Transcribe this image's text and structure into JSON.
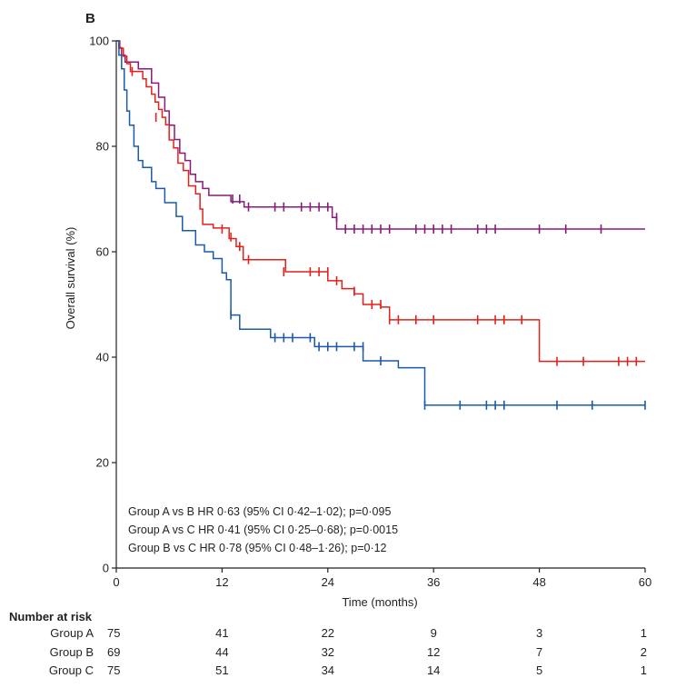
{
  "chart_data": {
    "type": "line",
    "panel_label": "B",
    "xlabel": "Time (months)",
    "ylabel": "Overall survival (%)",
    "xlim": [
      0,
      60
    ],
    "ylim": [
      0,
      100
    ],
    "x_ticks": [
      0,
      12,
      24,
      36,
      48,
      60
    ],
    "y_ticks": [
      0,
      20,
      40,
      60,
      80,
      100
    ],
    "grid": false,
    "annotations": [
      "Group A vs B HR 0·63 (95% CI 0·42–1·02); p=0·095",
      "Group A vs C HR 0·41 (95% CI 0·25–0·68); p=0·0015",
      "Group B vs C HR 0·78 (95% CI 0·48–1·26); p=0·12"
    ],
    "series": [
      {
        "name": "Group A",
        "color": "#8a1a7a",
        "steps": [
          [
            0,
            100
          ],
          [
            0.3,
            98.7
          ],
          [
            0.6,
            97.3
          ],
          [
            1.0,
            96
          ],
          [
            2.5,
            94.7
          ],
          [
            4.0,
            92
          ],
          [
            4.8,
            89.3
          ],
          [
            5.5,
            86.7
          ],
          [
            6.0,
            84
          ],
          [
            6.6,
            81.3
          ],
          [
            7.2,
            78.7
          ],
          [
            7.8,
            77.3
          ],
          [
            8.4,
            74.7
          ],
          [
            9.0,
            73.3
          ],
          [
            9.8,
            72
          ],
          [
            10.5,
            70.7
          ],
          [
            13.0,
            69.5
          ],
          [
            14.5,
            68.5
          ],
          [
            24.5,
            66.5
          ],
          [
            25.0,
            64.3
          ],
          [
            60,
            64.3
          ]
        ],
        "censor": [
          [
            13.2,
            70
          ],
          [
            14,
            70
          ],
          [
            15,
            68.5
          ],
          [
            18,
            68.5
          ],
          [
            19,
            68.5
          ],
          [
            21,
            68.5
          ],
          [
            22,
            68.5
          ],
          [
            23,
            68.5
          ],
          [
            24,
            68.5
          ],
          [
            25,
            66.5
          ],
          [
            26,
            64.3
          ],
          [
            27,
            64.3
          ],
          [
            28,
            64.3
          ],
          [
            29,
            64.3
          ],
          [
            30,
            64.3
          ],
          [
            31,
            64.3
          ],
          [
            34,
            64.3
          ],
          [
            35,
            64.3
          ],
          [
            36,
            64.3
          ],
          [
            37,
            64.3
          ],
          [
            38,
            64.3
          ],
          [
            41,
            64.3
          ],
          [
            42,
            64.3
          ],
          [
            43,
            64.3
          ],
          [
            48,
            64.3
          ],
          [
            51,
            64.3
          ],
          [
            55,
            64.3
          ]
        ]
      },
      {
        "name": "Group B",
        "color": "#e3211b",
        "steps": [
          [
            0,
            100
          ],
          [
            0.4,
            98.6
          ],
          [
            0.8,
            97.1
          ],
          [
            1.2,
            95.7
          ],
          [
            1.6,
            94.2
          ],
          [
            3.0,
            92.8
          ],
          [
            3.4,
            91.3
          ],
          [
            4.0,
            89.9
          ],
          [
            4.4,
            88.4
          ],
          [
            4.8,
            87
          ],
          [
            5.2,
            85.5
          ],
          [
            5.6,
            84.1
          ],
          [
            6.0,
            81.2
          ],
          [
            6.5,
            79.7
          ],
          [
            7.0,
            76.8
          ],
          [
            7.6,
            75.4
          ],
          [
            8.2,
            72.5
          ],
          [
            9.0,
            71
          ],
          [
            9.5,
            68.1
          ],
          [
            9.8,
            65.2
          ],
          [
            11.0,
            64.5
          ],
          [
            12.8,
            62.5
          ],
          [
            13.6,
            61
          ],
          [
            14.4,
            58.5
          ],
          [
            19.2,
            56.2
          ],
          [
            24.0,
            54.5
          ],
          [
            25.6,
            53
          ],
          [
            27.0,
            52
          ],
          [
            28.0,
            50
          ],
          [
            30.0,
            49.5
          ],
          [
            31.0,
            47.1
          ],
          [
            48.0,
            39.2
          ],
          [
            60,
            39.2
          ]
        ],
        "censor": [
          [
            1.8,
            94.2
          ],
          [
            4.5,
            85.5
          ],
          [
            12,
            64.3
          ],
          [
            13,
            62.8
          ],
          [
            14,
            61
          ],
          [
            15,
            58.5
          ],
          [
            19,
            56.2
          ],
          [
            22,
            56.2
          ],
          [
            23,
            56.2
          ],
          [
            24,
            56.2
          ],
          [
            25,
            54.5
          ],
          [
            27,
            52.5
          ],
          [
            29,
            50
          ],
          [
            30,
            50
          ],
          [
            31,
            47.1
          ],
          [
            32,
            47.1
          ],
          [
            34,
            47.1
          ],
          [
            36,
            47.1
          ],
          [
            41,
            47.1
          ],
          [
            43,
            47.1
          ],
          [
            44,
            47.1
          ],
          [
            46,
            47.1
          ],
          [
            50,
            39.2
          ],
          [
            53,
            39.2
          ],
          [
            57,
            39.2
          ],
          [
            58,
            39.2
          ],
          [
            59,
            39.2
          ]
        ],
        "end_y": 39.2
      },
      {
        "name": "Group C",
        "color": "#1a5aa8",
        "steps": [
          [
            0,
            100
          ],
          [
            0.3,
            97.3
          ],
          [
            0.6,
            94.7
          ],
          [
            0.9,
            90.7
          ],
          [
            1.2,
            86.7
          ],
          [
            1.5,
            84
          ],
          [
            2.0,
            80
          ],
          [
            2.5,
            77.3
          ],
          [
            3.0,
            76
          ],
          [
            4.0,
            73.3
          ],
          [
            4.5,
            72
          ],
          [
            5.5,
            69.3
          ],
          [
            6.8,
            66.7
          ],
          [
            7.5,
            64
          ],
          [
            9.0,
            61.3
          ],
          [
            10.0,
            60
          ],
          [
            11.0,
            58.7
          ],
          [
            12.0,
            56
          ],
          [
            12.5,
            54.7
          ],
          [
            13.0,
            48
          ],
          [
            14.0,
            45.3
          ],
          [
            17.5,
            43.7
          ],
          [
            22.5,
            42
          ],
          [
            28.0,
            39.3
          ],
          [
            32.0,
            38
          ],
          [
            35.0,
            30.9
          ],
          [
            60,
            30.9
          ]
        ],
        "censor": [
          [
            13,
            48
          ],
          [
            18,
            43.7
          ],
          [
            19,
            43.7
          ],
          [
            20,
            43.7
          ],
          [
            22,
            43.7
          ],
          [
            23,
            42
          ],
          [
            24,
            42
          ],
          [
            25,
            42
          ],
          [
            27,
            42
          ],
          [
            28,
            42
          ],
          [
            30,
            39.3
          ],
          [
            35,
            30.9
          ],
          [
            39,
            30.9
          ],
          [
            42,
            30.9
          ],
          [
            43,
            30.9
          ],
          [
            44,
            30.9
          ],
          [
            50,
            30.9
          ],
          [
            54,
            30.9
          ],
          [
            60,
            30.9
          ]
        ]
      }
    ],
    "risk_table": {
      "title": "Number at risk",
      "timepoints": [
        0,
        12,
        24,
        36,
        48,
        60
      ],
      "rows": [
        {
          "label": "Group A",
          "values": [
            "75",
            "41",
            "22",
            "9",
            "3",
            "1"
          ]
        },
        {
          "label": "Group B",
          "values": [
            "69",
            "44",
            "32",
            "12",
            "7",
            "2"
          ]
        },
        {
          "label": "Group C",
          "values": [
            "75",
            "51",
            "34",
            "14",
            "5",
            "1"
          ]
        }
      ]
    }
  }
}
